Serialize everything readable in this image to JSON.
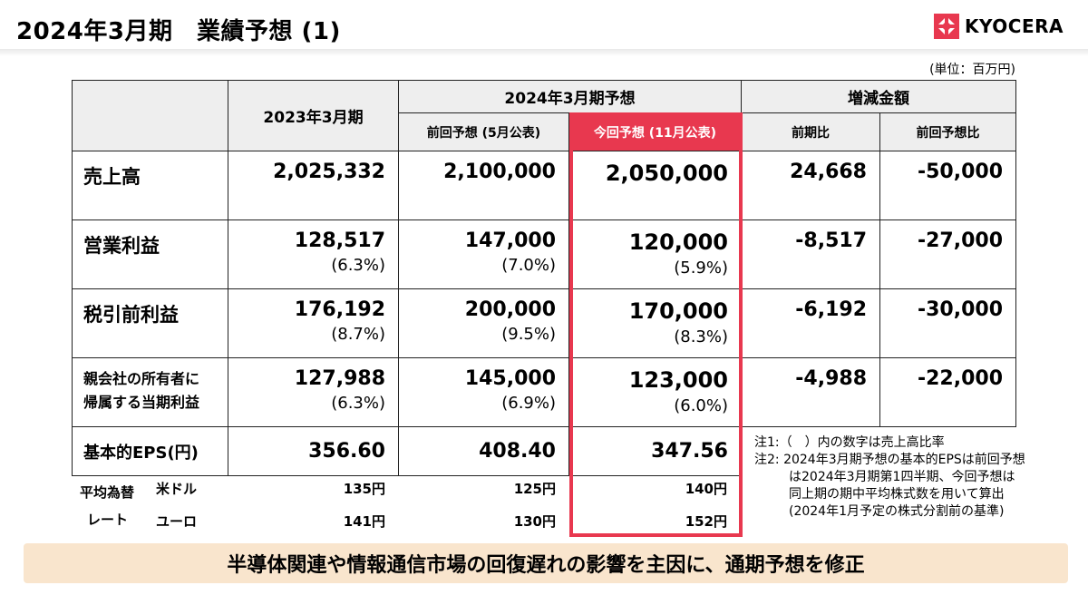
{
  "title": "2024年3月期　業績予想 (1)",
  "logo": {
    "text": "KYOCERA",
    "color": "#e8384f"
  },
  "unit": "(単位：百万円)",
  "headers": {
    "fy2023": "2023年3月期",
    "forecast_group": "2024年3月期予想",
    "previous_forecast": "前回予想 (5月公表)",
    "current_forecast": "今回予想 (11月公表)",
    "change_group": "増減金額",
    "yoy": "前期比",
    "vs_previous": "前回予想比"
  },
  "rows": [
    {
      "label": "売上高",
      "fy2023": "2,025,332",
      "fy2023_pct": "",
      "prev": "2,100,000",
      "prev_pct": "",
      "curr": "2,050,000",
      "curr_pct": "",
      "yoy": "24,668",
      "vs_prev": "-50,000"
    },
    {
      "label": "営業利益",
      "fy2023": "128,517",
      "fy2023_pct": "(6.3%)",
      "prev": "147,000",
      "prev_pct": "(7.0%)",
      "curr": "120,000",
      "curr_pct": "(5.9%)",
      "yoy": "-8,517",
      "vs_prev": "-27,000"
    },
    {
      "label": "税引前利益",
      "fy2023": "176,192",
      "fy2023_pct": "(8.7%)",
      "prev": "200,000",
      "prev_pct": "(9.5%)",
      "curr": "170,000",
      "curr_pct": "(8.3%)",
      "yoy": "-6,192",
      "vs_prev": "-30,000"
    },
    {
      "label_line1": "親会社の所有者に",
      "label_line2": "帰属する当期利益",
      "fy2023": "127,988",
      "fy2023_pct": "(6.3%)",
      "prev": "145,000",
      "prev_pct": "(6.9%)",
      "curr": "123,000",
      "curr_pct": "(6.0%)",
      "yoy": "-4,988",
      "vs_prev": "-22,000"
    },
    {
      "label": "基本的EPS(円)",
      "fy2023": "356.60",
      "prev": "408.40",
      "curr": "347.56"
    }
  ],
  "fx": {
    "label_line1": "平均為替",
    "label_line2": "レート",
    "usd_label": "米ドル",
    "eur_label": "ユーロ",
    "usd": {
      "fy2023": "135円",
      "prev": "125円",
      "curr": "140円"
    },
    "eur": {
      "fy2023": "141円",
      "prev": "130円",
      "curr": "152円"
    }
  },
  "notes": {
    "note1": "注1:（　）内の数字は売上高比率",
    "note2_line1": "注2: 2024年3月期予想の基本的EPSは前回予想",
    "note2_line2": "は2024年3月期第1四半期、今回予想は",
    "note2_line3": "同上期の期中平均株式数を用いて算出",
    "note2_line4": "(2024年1月予定の株式分割前の基準)"
  },
  "banner": "半導体関連や情報通信市場の回復遅れの影響を主因に、通期予想を修正"
}
